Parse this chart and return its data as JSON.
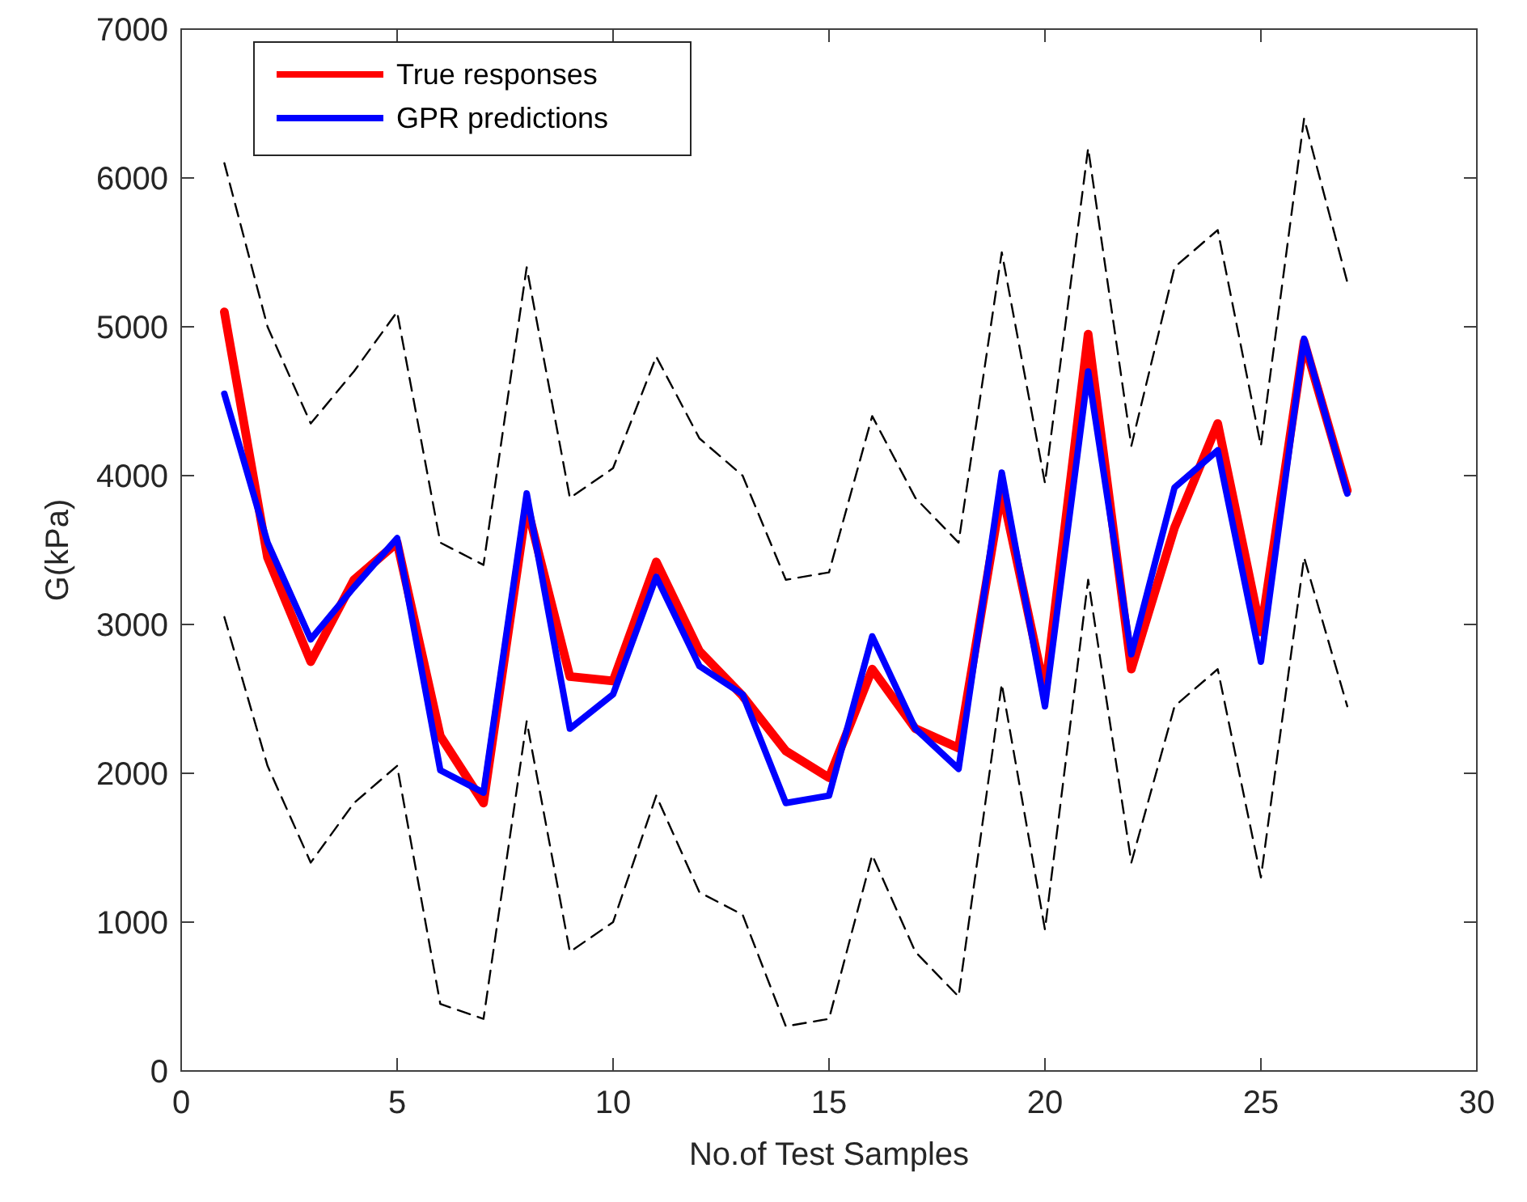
{
  "chart_data": {
    "type": "line",
    "xlabel": "No.of Test Samples",
    "ylabel": "G(kPa)",
    "x": [
      1,
      2,
      3,
      4,
      5,
      6,
      7,
      8,
      9,
      10,
      11,
      12,
      13,
      14,
      15,
      16,
      17,
      18,
      19,
      20,
      21,
      22,
      23,
      24,
      25,
      26,
      27
    ],
    "xlim": [
      0,
      30
    ],
    "xticks": [
      0,
      5,
      10,
      15,
      20,
      25,
      30
    ],
    "ylim": [
      0,
      7000
    ],
    "yticks": [
      0,
      1000,
      2000,
      3000,
      4000,
      5000,
      6000,
      7000
    ],
    "grid": false,
    "legend": "top left",
    "marker": "none",
    "series": [
      {
        "name": "True responses",
        "color": "#ff0000",
        "line_style": "solid",
        "values": [
          5100,
          3450,
          2750,
          3300,
          3550,
          2250,
          1800,
          3800,
          2650,
          2620,
          3420,
          2820,
          2520,
          2150,
          1970,
          2700,
          2300,
          2170,
          3900,
          2550,
          4950,
          2700,
          3650,
          4350,
          2950,
          4900,
          3900
        ]
      },
      {
        "name": "GPR predictions",
        "color": "#0000ff",
        "line_style": "solid",
        "values": [
          4550,
          3550,
          2900,
          3250,
          3580,
          2020,
          1870,
          3880,
          2300,
          2530,
          3320,
          2720,
          2530,
          1800,
          1850,
          2920,
          2300,
          2030,
          4020,
          2450,
          4700,
          2800,
          3920,
          4170,
          2750,
          4920,
          3880
        ]
      },
      {
        "color": "#000000",
        "line_style": "dashed",
        "values": [
          6100,
          5000,
          4350,
          4700,
          5100,
          3550,
          3400,
          5400,
          3850,
          4050,
          4800,
          4250,
          4000,
          3300,
          3350,
          4400,
          3850,
          3550,
          5500,
          3950,
          6200,
          4200,
          5400,
          5650,
          4200,
          6400,
          5300
        ]
      },
      {
        "color": "#000000",
        "line_style": "dashed",
        "values": [
          3050,
          2050,
          1400,
          1800,
          2050,
          450,
          350,
          2350,
          800,
          1000,
          1850,
          1200,
          1050,
          300,
          350,
          1450,
          800,
          500,
          2600,
          950,
          3300,
          1400,
          2450,
          2700,
          1300,
          3450,
          2450
        ]
      }
    ]
  }
}
